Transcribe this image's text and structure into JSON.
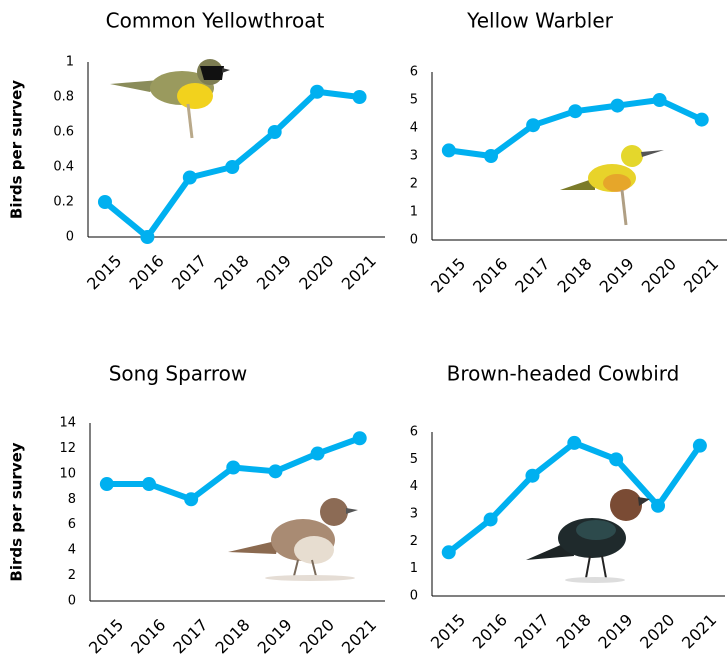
{
  "chart_data": [
    {
      "type": "line",
      "title": "Common Yellowthroat",
      "ylabel": "Birds per survey",
      "color": "#00b0f0",
      "categories": [
        "2015",
        "2016",
        "2017",
        "2018",
        "2019",
        "2020",
        "2021"
      ],
      "values": [
        0.2,
        0,
        0.34,
        0.4,
        0.6,
        0.83,
        0.8
      ],
      "ylim": [
        0,
        1
      ],
      "yticks": [
        0,
        0.2,
        0.4,
        0.6,
        0.8,
        1
      ]
    },
    {
      "type": "line",
      "title": "Yellow Warbler",
      "color": "#00b0f0",
      "categories": [
        "2015",
        "2016",
        "2017",
        "2018",
        "2019",
        "2020",
        "2021"
      ],
      "values": [
        3.2,
        3.0,
        4.1,
        4.6,
        4.8,
        5.0,
        4.3
      ],
      "ylim": [
        0,
        6
      ],
      "yticks": [
        0,
        1,
        2,
        3,
        4,
        5,
        6
      ]
    },
    {
      "type": "line",
      "title": "Song Sparrow",
      "ylabel": "Birds per survey",
      "color": "#00b0f0",
      "categories": [
        "2015",
        "2016",
        "2017",
        "2018",
        "2019",
        "2020",
        "2021"
      ],
      "values": [
        9.2,
        9.2,
        8.0,
        10.5,
        10.2,
        11.6,
        12.8
      ],
      "ylim": [
        0,
        14
      ],
      "yticks": [
        0,
        2,
        4,
        6,
        8,
        10,
        12,
        14
      ]
    },
    {
      "type": "line",
      "title": "Brown-headed Cowbird",
      "color": "#00b0f0",
      "categories": [
        "2015",
        "2016",
        "2017",
        "2018",
        "2019",
        "2020",
        "2021"
      ],
      "values": [
        1.6,
        2.8,
        4.4,
        5.6,
        5.0,
        3.3,
        5.5
      ],
      "ylim": [
        0,
        6
      ],
      "yticks": [
        0,
        1,
        2,
        3,
        4,
        5,
        6
      ]
    }
  ]
}
